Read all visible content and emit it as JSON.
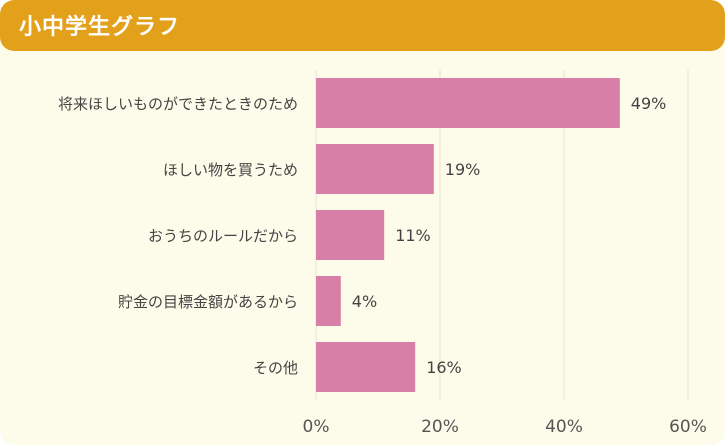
{
  "header": {
    "title": "小中学生グラフ"
  },
  "colors": {
    "header_bg": "#e3a11b",
    "panel_bg": "#fdfcea",
    "bar": "#d77fa6",
    "grid": "#e6e2cf",
    "text": "#444444",
    "axis_text": "#555555"
  },
  "chart_data": {
    "type": "bar",
    "orientation": "horizontal",
    "categories": [
      "将来ほしいものができたときのため",
      "ほしい物を買うため",
      "おうちのルールだから",
      "貯金の目標金額があるから",
      "その他"
    ],
    "values": [
      49,
      19,
      11,
      4,
      16
    ],
    "value_labels": [
      "49%",
      "19%",
      "11%",
      "4%",
      "16%"
    ],
    "xlim": [
      0,
      60
    ],
    "xticks": [
      0,
      20,
      40,
      60
    ],
    "xtick_labels": [
      "0%",
      "20%",
      "40%",
      "60%"
    ],
    "grid": true
  }
}
